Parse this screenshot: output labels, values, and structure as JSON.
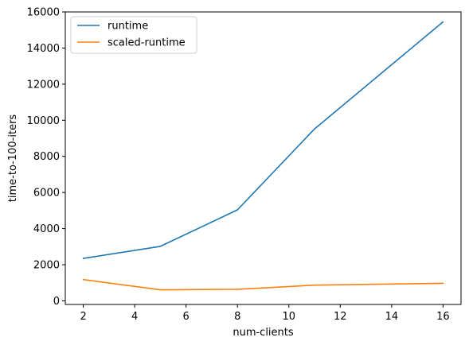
{
  "chart_data": {
    "type": "line",
    "title": "",
    "xlabel": "num-clients",
    "ylabel": "time-to-100-iters",
    "xlim": [
      1.3,
      16.7
    ],
    "ylim": [
      -200,
      16000
    ],
    "x_ticks": [
      2,
      4,
      6,
      8,
      10,
      12,
      14,
      16
    ],
    "y_ticks": [
      0,
      2000,
      4000,
      6000,
      8000,
      10000,
      12000,
      14000,
      16000
    ],
    "grid": false,
    "legend_position": "top-left",
    "series": [
      {
        "name": "runtime",
        "color": "#1f77b4",
        "x": [
          2,
          5,
          8,
          11,
          16
        ],
        "y": [
          2350,
          3020,
          5040,
          9520,
          15450
        ]
      },
      {
        "name": "scaled-runtime",
        "color": "#ff7f0e",
        "x": [
          2,
          5,
          8,
          11,
          16
        ],
        "y": [
          1180,
          610,
          640,
          870,
          970
        ]
      }
    ]
  }
}
